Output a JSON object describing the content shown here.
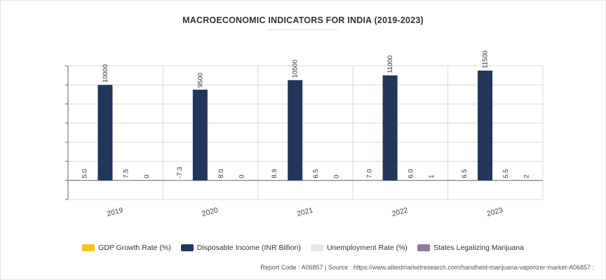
{
  "chart_data": {
    "type": "bar",
    "title": "MACROECONOMIC INDICATORS FOR INDIA (2019-2023)",
    "categories": [
      "2019",
      "2020",
      "2021",
      "2022",
      "2023"
    ],
    "series": [
      {
        "name": "GDP Growth Rate (%)",
        "color": "#f5c518",
        "values": [
          5.0,
          -7.3,
          8.9,
          7.0,
          6.5
        ],
        "labels": [
          "5.0",
          "-7.3",
          "8.9",
          "7.0",
          "6.5"
        ]
      },
      {
        "name": "Disposable Income (INR Billion)",
        "color": "#22365a",
        "values": [
          10000,
          9500,
          10500,
          11000,
          11500
        ],
        "labels": [
          "10000",
          "9500",
          "10500",
          "11000",
          "11500"
        ]
      },
      {
        "name": "Unemployment Rate (%)",
        "color": "#e6e6e6",
        "values": [
          7.5,
          8.0,
          6.5,
          6.0,
          5.5
        ],
        "labels": [
          "7.5",
          "8.0",
          "6.5",
          "6.0",
          "5.5"
        ]
      },
      {
        "name": "States Legalizing Marijuana",
        "color": "#8c7b99",
        "values": [
          0,
          0,
          0,
          1,
          2
        ],
        "labels": [
          "0",
          "0",
          "0",
          "1",
          "2"
        ]
      }
    ],
    "ylim": [
      -2000,
      12000
    ],
    "grid": true,
    "legend_position": "bottom"
  },
  "footer": {
    "text": "Report Code : A06857  |  Source : https://www.alliedmarketresearch.com/handheld-marijuana-vaporizer-market-A06857 :"
  }
}
